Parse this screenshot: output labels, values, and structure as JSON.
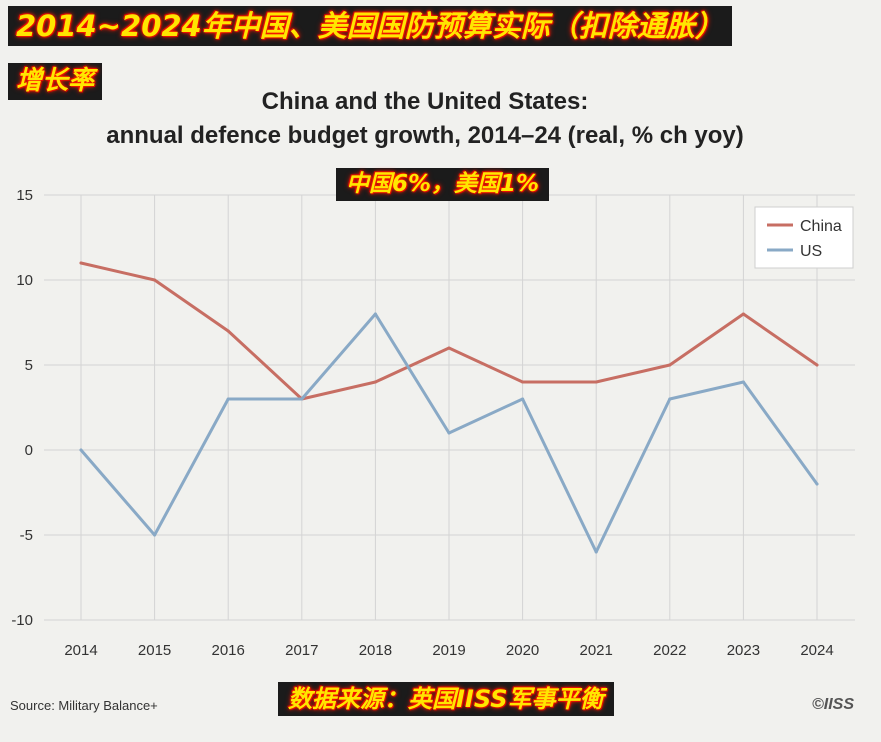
{
  "banners": {
    "title_cn_line1": "2014~2024年中国、美国国防预算实际（扣除通胀）",
    "title_cn_line2": "增长率",
    "highlight": "中国6%，美国1%",
    "source_cn": "数据来源：英国IISS军事平衡"
  },
  "source_en": "Source: Military Balance+",
  "logo": "©IISS",
  "colors": {
    "china": "#c76e63",
    "us": "#89a9c6",
    "grid": "#d4d4d4",
    "background": "#f1f1ee"
  },
  "chart_data": {
    "type": "line",
    "title": "China and the United States:",
    "subtitle": "annual defence budget growth, 2014–24 (real, % ch yoy)",
    "xlabel": "",
    "ylabel": "",
    "categories": [
      "2014",
      "2015",
      "2016",
      "2017",
      "2018",
      "2019",
      "2020",
      "2021",
      "2022",
      "2023",
      "2024"
    ],
    "series": [
      {
        "name": "China",
        "values": [
          11,
          10,
          7,
          3,
          4,
          6,
          4,
          4,
          5,
          8,
          5
        ]
      },
      {
        "name": "US",
        "values": [
          0,
          -5,
          3,
          3,
          8,
          1,
          3,
          -6,
          3,
          4,
          -2
        ]
      }
    ],
    "ylim": [
      -10,
      15
    ],
    "yticks": [
      "15",
      "10",
      "5",
      "0",
      "-5",
      "-10"
    ],
    "grid": true,
    "legend_position": "top-right"
  }
}
